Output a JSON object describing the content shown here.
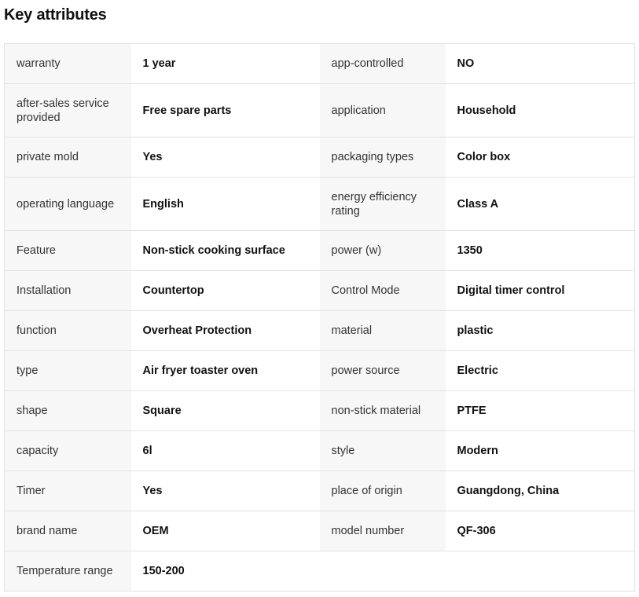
{
  "section": {
    "title": "Key attributes"
  },
  "rows": [
    {
      "k1": "warranty",
      "v1": "1 year",
      "k2": "app-controlled",
      "v2": "NO"
    },
    {
      "k1": "after-sales service provided",
      "v1": "Free spare parts",
      "k2": "application",
      "v2": "Household"
    },
    {
      "k1": "private mold",
      "v1": "Yes",
      "k2": "packaging types",
      "v2": "Color box"
    },
    {
      "k1": "operating language",
      "v1": "English",
      "k2": "energy efficiency rating",
      "v2": "Class A"
    },
    {
      "k1": "Feature",
      "v1": "Non-stick cooking surface",
      "k2": "power (w)",
      "v2": "1350"
    },
    {
      "k1": "Installation",
      "v1": "Countertop",
      "k2": "Control Mode",
      "v2": "Digital timer control"
    },
    {
      "k1": "function",
      "v1": "Overheat Protection",
      "k2": "material",
      "v2": "plastic"
    },
    {
      "k1": "type",
      "v1": "Air fryer toaster oven",
      "k2": "power source",
      "v2": "Electric"
    },
    {
      "k1": "shape",
      "v1": "Square",
      "k2": "non-stick material",
      "v2": "PTFE"
    },
    {
      "k1": "capacity",
      "v1": "6l",
      "k2": "style",
      "v2": "Modern"
    },
    {
      "k1": "Timer",
      "v1": "Yes",
      "k2": "place of origin",
      "v2": "Guangdong, China"
    },
    {
      "k1": "brand name",
      "v1": "OEM",
      "k2": "model number",
      "v2": "QF-306"
    },
    {
      "k1": "Temperature range",
      "v1": "150-200",
      "k2": "",
      "v2": ""
    }
  ]
}
